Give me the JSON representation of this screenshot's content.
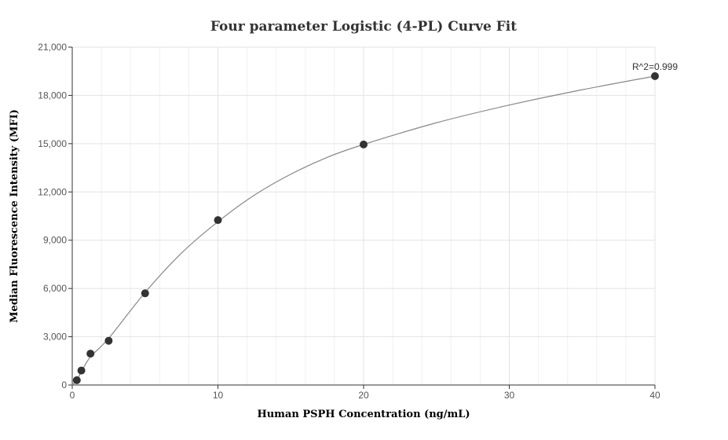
{
  "chart_data": {
    "type": "scatter",
    "title": "Four parameter Logistic (4-PL) Curve Fit",
    "xlabel": "Human PSPH Concentration (ng/mL)",
    "ylabel": "Median Fluorescence Intensity (MFI)",
    "xlim": [
      0,
      40
    ],
    "ylim": [
      0,
      21000
    ],
    "x_ticks": [
      0,
      10,
      20,
      30,
      40
    ],
    "y_ticks": [
      0,
      3000,
      6000,
      9000,
      12000,
      15000,
      18000,
      21000
    ],
    "x_tick_labels": [
      "0",
      "10",
      "20",
      "30",
      "40"
    ],
    "y_tick_labels": [
      "0",
      "3,000",
      "6,000",
      "9,000",
      "12,000",
      "15,000",
      "18,000",
      "21,000"
    ],
    "grid": true,
    "x_minor_grid_step": 2,
    "series": [
      {
        "type": "scatter",
        "x": [
          0.3125,
          0.625,
          1.25,
          2.5,
          5,
          10,
          20,
          40
        ],
        "y": [
          300,
          900,
          1950,
          2750,
          5700,
          10250,
          14950,
          19200
        ],
        "color": "#333333"
      },
      {
        "type": "line",
        "x": [
          0,
          0.3125,
          0.625,
          1.25,
          2.5,
          5,
          7.5,
          10,
          12.5,
          15,
          17.5,
          20,
          25,
          30,
          35,
          40
        ],
        "y": [
          0,
          300,
          820,
          1750,
          2900,
          5750,
          8200,
          10150,
          11800,
          13100,
          14150,
          14950,
          16300,
          17400,
          18350,
          19200
        ],
        "color": "#888888"
      }
    ],
    "annotations": [
      {
        "text": "R^2=0.999",
        "x": 40,
        "y": 19200
      }
    ]
  }
}
